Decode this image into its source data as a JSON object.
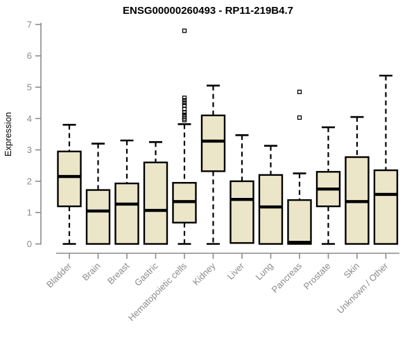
{
  "window": {
    "background": "#ffffff"
  },
  "colors": {
    "box_fill": "#ECE6C9",
    "box_border": "#000000",
    "median": "#000000",
    "whisker": "#000000",
    "outlier": "#000000",
    "axis": "#8A8A8A",
    "tick_label": "#8A8A8A",
    "title": "#000000"
  },
  "chart_data": {
    "type": "boxplot",
    "title": "ENSG00000260493 - RP11-219B4.7",
    "xlabel": "",
    "ylabel": "Expression",
    "ylim": [
      0,
      7
    ],
    "yticks": [
      0,
      1,
      2,
      3,
      4,
      5,
      6,
      7
    ],
    "grid": false,
    "legend": "none",
    "categories": [
      "Bladder",
      "Brain",
      "Breast",
      "Gastric",
      "Hematopoietic cells",
      "Kidney",
      "Liver",
      "Lung",
      "Pancreas",
      "Prostate",
      "Skin",
      "Unknown / Other"
    ],
    "series": [
      {
        "category": "Bladder",
        "min": 0,
        "q1": 1.2,
        "median": 2.15,
        "q3": 2.95,
        "max": 3.8,
        "outliers": []
      },
      {
        "category": "Brain",
        "min": 0,
        "q1": 0,
        "median": 1.05,
        "q3": 1.72,
        "max": 3.2,
        "outliers": []
      },
      {
        "category": "Breast",
        "min": 0,
        "q1": 0,
        "median": 1.27,
        "q3": 1.93,
        "max": 3.3,
        "outliers": []
      },
      {
        "category": "Gastric",
        "min": 0,
        "q1": 0,
        "median": 1.07,
        "q3": 2.6,
        "max": 3.25,
        "outliers": []
      },
      {
        "category": "Hematopoietic cells",
        "min": 0,
        "q1": 0.68,
        "median": 1.35,
        "q3": 1.95,
        "max": 3.82,
        "outliers": [
          3.95,
          4.0,
          4.06,
          4.12,
          4.2,
          4.3,
          4.42,
          4.5,
          4.58,
          4.66,
          6.8
        ]
      },
      {
        "category": "Kidney",
        "min": 0,
        "q1": 2.32,
        "median": 3.28,
        "q3": 4.1,
        "max": 5.05,
        "outliers": []
      },
      {
        "category": "Liver",
        "min": 0,
        "q1": 0.03,
        "median": 1.42,
        "q3": 2.0,
        "max": 3.47,
        "outliers": []
      },
      {
        "category": "Lung",
        "min": 0,
        "q1": 0,
        "median": 1.18,
        "q3": 2.2,
        "max": 3.13,
        "outliers": []
      },
      {
        "category": "Pancreas",
        "min": 0,
        "q1": 0,
        "median": 0.05,
        "q3": 1.4,
        "max": 2.25,
        "outliers": [
          4.03,
          4.85
        ]
      },
      {
        "category": "Prostate",
        "min": 0,
        "q1": 1.2,
        "median": 1.75,
        "q3": 2.3,
        "max": 3.72,
        "outliers": []
      },
      {
        "category": "Skin",
        "min": 0,
        "q1": 0,
        "median": 1.35,
        "q3": 2.77,
        "max": 4.05,
        "outliers": []
      },
      {
        "category": "Unknown / Other",
        "min": 0,
        "q1": 0,
        "median": 1.58,
        "q3": 2.35,
        "max": 5.37,
        "outliers": []
      }
    ]
  }
}
